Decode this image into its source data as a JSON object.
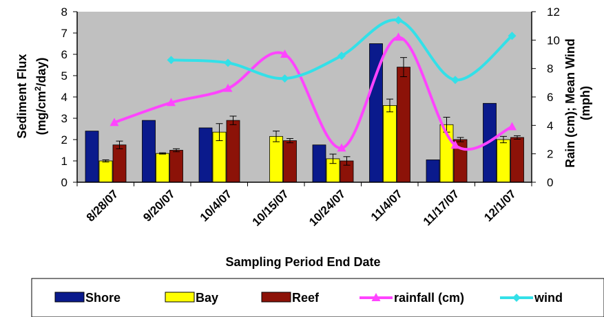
{
  "chart_data": {
    "type": "bar",
    "categories": [
      "8/28/07",
      "9/20/07",
      "10/4/07",
      "10/15/07",
      "10/24/07",
      "11/4/07",
      "11/17/07",
      "12/1/07"
    ],
    "series": [
      {
        "name": "Shore",
        "kind": "bar",
        "axis": "left",
        "color": "#0a1a8c",
        "values": [
          2.4,
          2.9,
          2.55,
          null,
          1.75,
          6.5,
          1.05,
          3.7
        ],
        "errors": [
          null,
          null,
          null,
          null,
          null,
          null,
          null,
          null
        ]
      },
      {
        "name": "Bay",
        "kind": "bar",
        "axis": "left",
        "color": "#ffff00",
        "values": [
          1.0,
          1.35,
          2.35,
          2.15,
          1.1,
          3.6,
          2.7,
          2.0
        ],
        "errors": [
          0.05,
          0.03,
          0.4,
          0.25,
          0.22,
          0.3,
          0.35,
          0.15
        ]
      },
      {
        "name": "Reef",
        "kind": "bar",
        "axis": "left",
        "color": "#8c1208",
        "values": [
          1.75,
          1.5,
          2.9,
          1.95,
          1.0,
          5.4,
          2.0,
          2.1
        ],
        "errors": [
          0.18,
          0.07,
          0.2,
          0.1,
          0.2,
          0.45,
          0.1,
          0.08
        ]
      },
      {
        "name": "rainfall (cm)",
        "kind": "line",
        "axis": "right",
        "color": "#ff44ff",
        "values": [
          4.2,
          5.6,
          6.6,
          9.0,
          2.4,
          10.2,
          2.6,
          3.9
        ]
      },
      {
        "name": "wind",
        "kind": "line",
        "axis": "right",
        "color": "#33e0e8",
        "values": [
          null,
          8.6,
          8.4,
          7.3,
          8.9,
          11.4,
          7.2,
          10.3
        ]
      }
    ],
    "xlabel": "Sampling Period End Date",
    "ylabel": "Sediment Flux (mg/cm²/day)",
    "ylabel_line1": "Sediment Flux",
    "ylabel_line2_pre": "(mg/cm",
    "ylabel_line2_sup": "2",
    "ylabel_line2_post": "/day)",
    "y2label": "Rain (cm); Mean Wind (mph)",
    "y2label_line1": "Rain (cm); Mean Wind",
    "y2label_line2": "(mph)",
    "ylim": [
      0,
      8
    ],
    "y2lim": [
      0,
      12
    ],
    "yticks": [
      "0",
      "1",
      "2",
      "3",
      "4",
      "5",
      "6",
      "7",
      "8"
    ],
    "y2ticks": [
      "0",
      "2",
      "4",
      "6",
      "8",
      "10",
      "12"
    ],
    "plot_background": "#c0c0c0",
    "grid": false,
    "legend_position": "bottom"
  }
}
